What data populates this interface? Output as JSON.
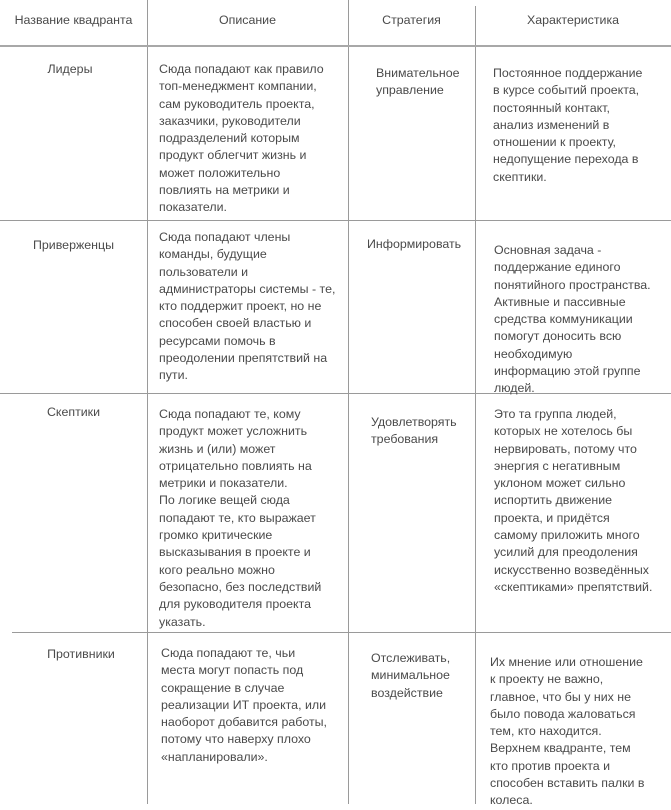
{
  "headers": [
    "Название квадранта",
    "Описание",
    "Стратегия",
    "Характеристика"
  ],
  "rows": [
    {
      "name": "Лидеры",
      "description": "Сюда попадают как правило\nтоп-менеджмент компании,\nсам руководитель проекта,\nзаказчики, руководители\nподразделений которым\nпродукт облегчит жизнь и\nможет положительно\nповлиять на метрики и\nпоказатели.",
      "strategy": "Внимательное\nуправление",
      "characteristic": "Постоянное поддержание\nв курсе событий проекта,\nпостоянный контакт,\nанализ изменений в\nотношении к проекту,\nнедопущение перехода в\nскептики."
    },
    {
      "name": "Приверженцы",
      "description": "Сюда попадают члены\nкоманды, будущие\nпользователи и\nадминистраторы системы - те,\n кто поддержит проект, но не\nспособен своей властью и\nресурсами помочь в\nпреодолении препятствий на\nпути.",
      "strategy": "Информировать",
      "characteristic": "Основная задача -\nподдержание единого\nпонятийного пространства.\nАктивные и пассивные\nсредства коммуникации\nпомогут доносить всю\nнеобходимую\nинформацию этой группе\nлюдей."
    },
    {
      "name": "Скептики",
      "description": "Сюда попадают те, кому\nпродукт может усложнить\nжизнь и (или) может\nотрицательно повлиять на\nметрики и показатели.\nПо логике вещей сюда\nпопадают те, кто выражает\nгромко критические\nвысказывания в проекте и\nкого реально можно\nбезопасно, без последствий\nдля руководителя проекта\nуказать.",
      "strategy": "Удовлетворять\nтребования",
      "characteristic": "Это та группа людей,\nкоторых не хотелось бы\nнервировать, потому что\nэнергия с негативным\nуклоном может сильно\nиспортить движение\nпроекта, и придётся\nсамому приложить много\nусилий для преодоления\nискусственно возведённых\n«скептиками» препятствий."
    },
    {
      "name": "Противники",
      "description": "Сюда попадают те, чьи\nместа могут попасть под\nсокращение в случае\nреализации ИТ проекта, или\nнаоборот добавится работы,\nпотому что наверху плохо\n«напланировали».",
      "strategy": "Отслеживать,\nминимальное\nвоздействие",
      "characteristic": "Их мнение или отношение\nк проекту не важно,\nглавное, что бы у них не\nбыло повода жаловаться\nтем, кто находится.\nВерхнем квадранте, тем\nкто против проекта и\nспособен вставить палки в\nколеса."
    }
  ]
}
